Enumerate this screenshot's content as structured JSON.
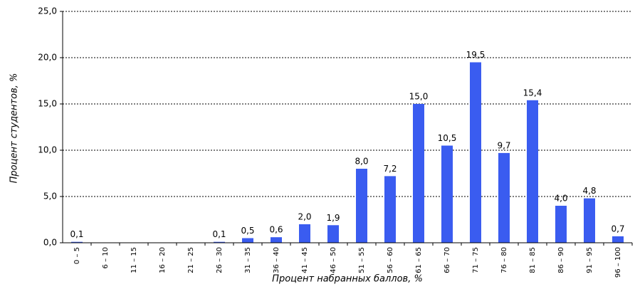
{
  "chart_data": {
    "type": "bar",
    "x_label": "Процент набранных баллов, %",
    "y_label": "Процент студентов, %",
    "categories": [
      "0 – 5",
      "6 – 10",
      "11 – 15",
      "16 – 20",
      "21 – 25",
      "26 – 30",
      "31 – 35",
      "36 – 40",
      "41 – 45",
      "46 – 50",
      "51 – 55",
      "56 – 60",
      "61 – 65",
      "66 – 70",
      "71 – 75",
      "76 – 80",
      "81 – 85",
      "86 – 90",
      "91 – 95",
      "96 – 100"
    ],
    "values": [
      0.1,
      null,
      null,
      null,
      null,
      0.1,
      0.5,
      0.6,
      2.0,
      1.9,
      8.0,
      7.2,
      15.0,
      10.5,
      19.5,
      9.7,
      15.4,
      4.0,
      4.8,
      0.7
    ],
    "value_labels": [
      "0,1",
      null,
      null,
      null,
      null,
      "0,1",
      "0,5",
      "0,6",
      "2,0",
      "1,9",
      "8,0",
      "7,2",
      "15,0",
      "10,5",
      "19,5",
      "9,7",
      "15,4",
      "4,0",
      "4,8",
      "0,7"
    ],
    "color": "#3a5cf0",
    "ylim": [
      0,
      25
    ],
    "yticks": [
      {
        "value": 0,
        "label": "0,0"
      },
      {
        "value": 5,
        "label": "5,0"
      },
      {
        "value": 10,
        "label": "10,0"
      },
      {
        "value": 15,
        "label": "15,0"
      },
      {
        "value": 20,
        "label": "20,0"
      },
      {
        "value": 25,
        "label": "25,0"
      }
    ],
    "grid": true
  }
}
